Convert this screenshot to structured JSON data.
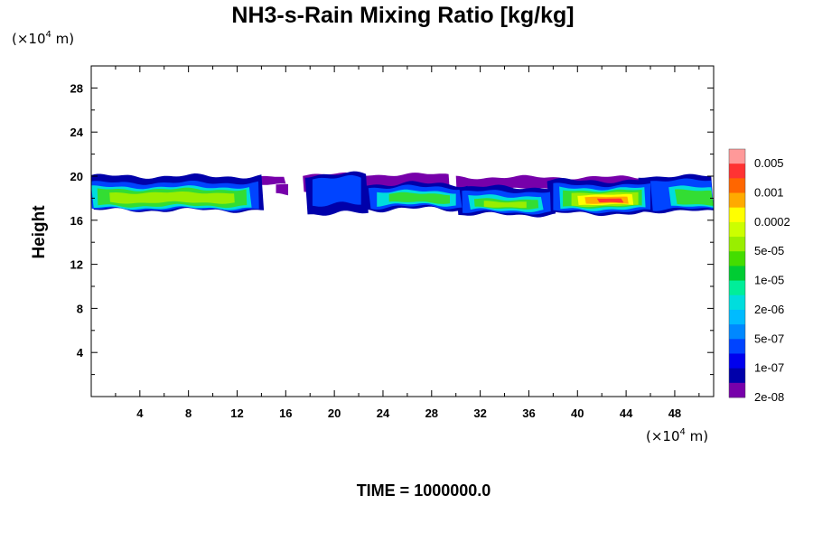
{
  "chart_data": {
    "type": "heatmap",
    "title": "NH3-s-Rain Mixing Ratio [kg/kg]",
    "ylabel": "Height",
    "xlabel": "",
    "y_unit": {
      "prefix": "(×10",
      "exp": "4",
      "suffix": " m)"
    },
    "x_unit": {
      "prefix": "(×10",
      "exp": "4",
      "suffix": " m)"
    },
    "xlim": [
      0,
      51.2
    ],
    "ylim": [
      0,
      30
    ],
    "x_ticks": [
      "4",
      "8",
      "12",
      "16",
      "20",
      "24",
      "28",
      "32",
      "36",
      "40",
      "44",
      "48"
    ],
    "y_ticks": [
      "4",
      "8",
      "12",
      "16",
      "20",
      "24",
      "28"
    ],
    "time_label": "TIME = 1000000.0",
    "colorbar": {
      "labels": [
        "0.005",
        "0.001",
        "0.0002",
        "5e-05",
        "1e-05",
        "2e-06",
        "5e-07",
        "1e-07",
        "2e-08"
      ],
      "colors_top_to_bottom": [
        "#ff9999",
        "#ff3333",
        "#ff6600",
        "#ffaa00",
        "#ffff00",
        "#ccff00",
        "#99ee00",
        "#44dd00",
        "#00cc33",
        "#00ee99",
        "#00dddd",
        "#00bbff",
        "#0088ff",
        "#0044ff",
        "#0000ee",
        "#0000aa",
        "#7700aa"
      ]
    },
    "field_description_layers": [
      {
        "level": "2e-08",
        "color": "#7700aa",
        "x_range": [
          10.5,
          50.5
        ],
        "y_range": [
          16.8,
          20.2
        ]
      },
      {
        "level": "1e-07",
        "color": "#0000aa",
        "x_range": [
          0,
          51.2
        ],
        "y_range": [
          16.5,
          20.0
        ]
      },
      {
        "level": "5e-07",
        "color": "#00ddee",
        "x_range": [
          0,
          51.2
        ],
        "y_range": [
          16.6,
          19.0
        ]
      },
      {
        "level": "1e-05",
        "color": "#33dd33",
        "x_range": [
          0,
          51.2
        ],
        "y_range": [
          16.8,
          18.8
        ]
      },
      {
        "level": "0.0002",
        "color": "#ffaa00",
        "x_range": [
          39.5,
          45.0
        ],
        "y_range": [
          17.2,
          18.2
        ]
      },
      {
        "level": "0.001",
        "color": "#ff3333",
        "x_range": [
          41.5,
          44.0
        ],
        "y_range": [
          17.5,
          18.0
        ]
      }
    ]
  }
}
